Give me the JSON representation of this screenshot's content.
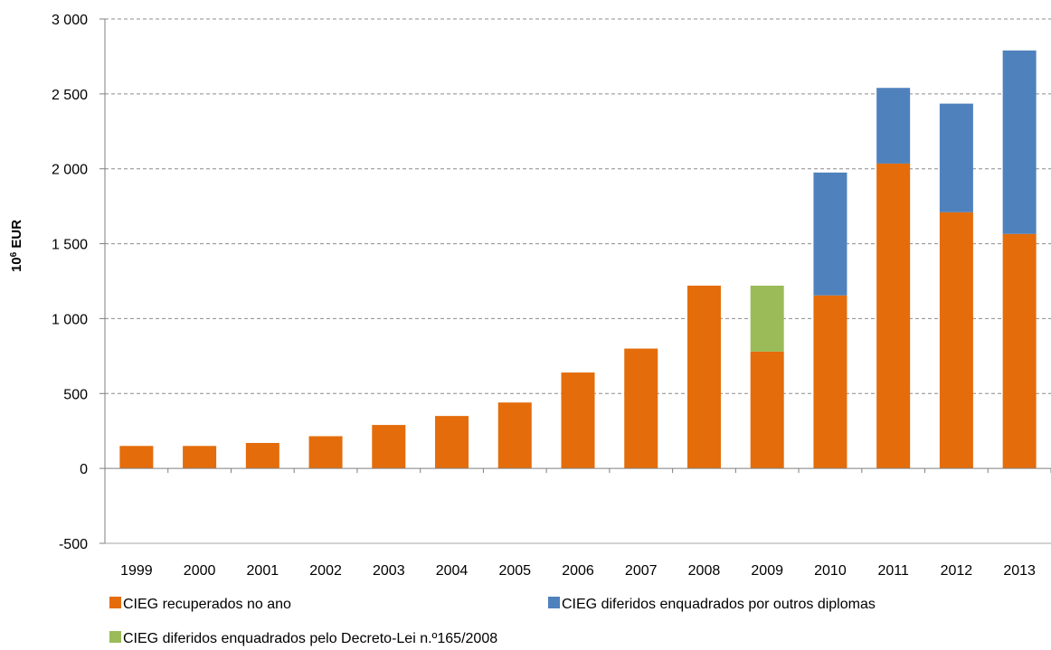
{
  "chart_data": {
    "type": "bar",
    "stacked": true,
    "categories": [
      "1999",
      "2000",
      "2001",
      "2002",
      "2003",
      "2004",
      "2005",
      "2006",
      "2007",
      "2008",
      "2009",
      "2010",
      "2011",
      "2012",
      "2013"
    ],
    "series": [
      {
        "name": "CIEG recuperados no ano",
        "color": "#E46C0A",
        "values": [
          150,
          150,
          170,
          215,
          290,
          350,
          440,
          640,
          800,
          1220,
          780,
          1155,
          2035,
          1710,
          1565
        ]
      },
      {
        "name": "CIEG diferidos enquadrados por outros diplomas",
        "color": "#4F81BD",
        "values": [
          0,
          0,
          0,
          0,
          0,
          0,
          0,
          0,
          0,
          0,
          0,
          820,
          505,
          725,
          1225
        ]
      },
      {
        "name": "CIEG diferidos enquadrados pelo Decreto-Lei n.º165/2008",
        "color": "#9BBB59",
        "values": [
          0,
          0,
          0,
          0,
          0,
          0,
          0,
          0,
          0,
          0,
          440,
          0,
          0,
          0,
          0
        ]
      }
    ],
    "ylabel": "10⁶ EUR",
    "ylim": [
      -500,
      3000
    ],
    "yticks": [
      -500,
      0,
      500,
      1000,
      1500,
      2000,
      2500,
      3000
    ],
    "ytick_labels": [
      "-500",
      "0",
      "500",
      "1 000",
      "1 500",
      "2 000",
      "2 500",
      "3 000"
    ],
    "grid": true,
    "legend_position": "bottom"
  }
}
